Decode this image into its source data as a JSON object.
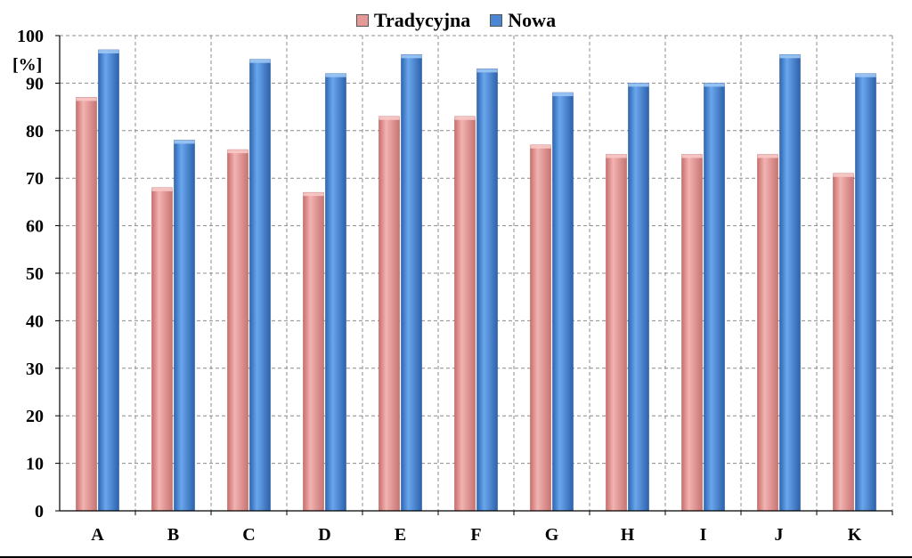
{
  "chart_data": {
    "type": "bar",
    "categories": [
      "A",
      "B",
      "C",
      "D",
      "E",
      "F",
      "G",
      "H",
      "I",
      "J",
      "K"
    ],
    "series": [
      {
        "name": "Tradycyjna",
        "values": [
          87,
          68,
          76,
          67,
          83,
          83,
          77,
          75,
          75,
          75,
          71
        ],
        "color": "#e59a98"
      },
      {
        "name": "Nowa",
        "values": [
          97,
          78,
          95,
          92,
          96,
          93,
          88,
          90,
          90,
          96,
          92
        ],
        "color": "#4a86d4"
      }
    ],
    "title": "",
    "xlabel": "",
    "ylabel": "[%]",
    "ylim": [
      0,
      100
    ],
    "yticks": [
      "0",
      "10",
      "20",
      "30",
      "40",
      "50",
      "60",
      "70",
      "80",
      "90",
      "100"
    ],
    "grid": true,
    "legend_position": "top"
  }
}
